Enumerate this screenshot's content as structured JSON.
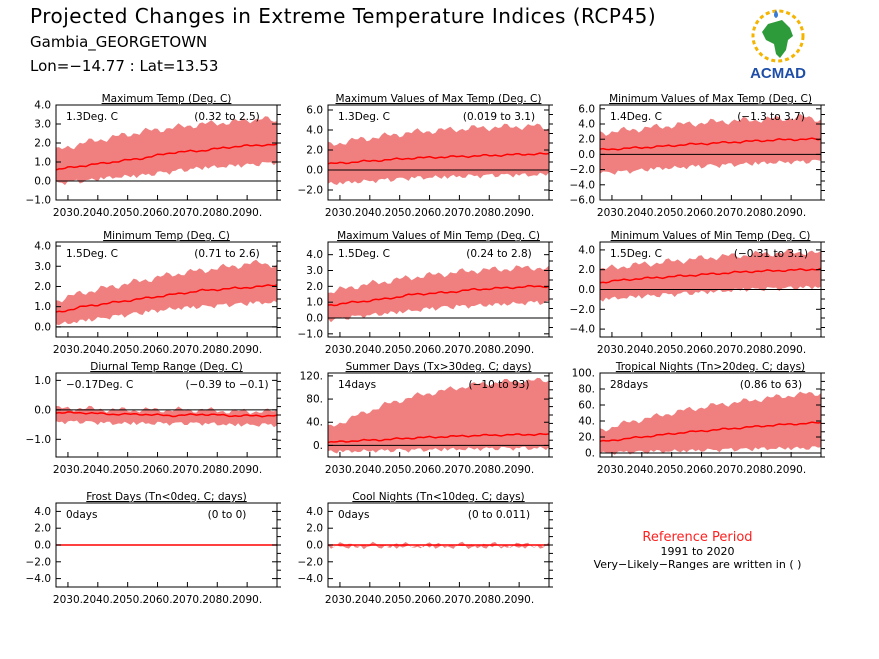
{
  "header": {
    "title": "Projected Changes in Extreme Temperature Indices (RCP45)",
    "location": "Gambia_GEORGETOWN",
    "coords": "Lon=−14.77 : Lat=13.53",
    "logo_text": "ACMAD"
  },
  "reference": {
    "title": "Reference Period",
    "period": "1991 to 2020",
    "note": "Very−Likely−Ranges are written in ( )"
  },
  "colors": {
    "band": "#f08080",
    "line": "#ff0000",
    "zero": "#000000",
    "ref_text": "#ff2020"
  },
  "chart_data": [
    {
      "type": "line",
      "title": "Maximum Temp (Deg. C)",
      "value_text": "1.3Deg. C",
      "range_text": "(0.32 to 2.5)",
      "ylim": [
        -1.0,
        4.0
      ],
      "yticks": [
        "4.0",
        "3.0",
        "2.0",
        "1.0",
        "0.0",
        "−1.0"
      ],
      "ytick_values": [
        4,
        3,
        2,
        1,
        0,
        -1
      ],
      "x_start": 2026,
      "x_end": 2100,
      "xticks": [
        "2030.",
        "2040.",
        "2050.",
        "2060.",
        "2070.",
        "2080.",
        "2090."
      ],
      "mean": {
        "x": [
          2026,
          2035,
          2045,
          2055,
          2065,
          2075,
          2085,
          2095,
          2100
        ],
        "y": [
          0.6,
          0.8,
          1.0,
          1.2,
          1.5,
          1.6,
          1.8,
          1.9,
          1.9
        ]
      },
      "band": {
        "low": [
          0.0,
          0.1,
          0.3,
          0.4,
          0.6,
          0.8,
          0.9,
          1.0,
          1.1
        ],
        "high": [
          1.6,
          2.0,
          2.3,
          2.6,
          2.8,
          3.0,
          3.1,
          3.3,
          3.1
        ]
      }
    },
    {
      "type": "line",
      "title": "Maximum Values of Max Temp (Deg. C)",
      "value_text": "1.3Deg. C",
      "range_text": "(0.019 to 3.1)",
      "ylim": [
        -3.0,
        6.5
      ],
      "yticks": [
        "6.0",
        "4.0",
        "2.0",
        "0.0",
        "−2.0"
      ],
      "ytick_values": [
        6,
        4,
        2,
        0,
        -2
      ],
      "x_start": 2026,
      "x_end": 2100,
      "xticks": [
        "2030.",
        "2040.",
        "2050.",
        "2060.",
        "2070.",
        "2080.",
        "2090."
      ],
      "mean": {
        "x": [
          2026,
          2035,
          2045,
          2055,
          2065,
          2075,
          2085,
          2095,
          2100
        ],
        "y": [
          0.6,
          0.8,
          1.0,
          1.2,
          1.3,
          1.4,
          1.5,
          1.6,
          1.6
        ]
      },
      "band": {
        "low": [
          -1.2,
          -1.0,
          -0.8,
          -0.6,
          -0.5,
          -0.4,
          -0.3,
          -0.3,
          -0.2
        ],
        "high": [
          2.5,
          3.0,
          3.4,
          3.8,
          4.0,
          4.2,
          4.3,
          4.4,
          4.2
        ]
      }
    },
    {
      "type": "line",
      "title": "Minimum Values of Max Temp (Deg. C)",
      "value_text": "1.4Deg. C",
      "range_text": "(−1.3 to 3.7)",
      "ylim": [
        -6.0,
        6.5
      ],
      "yticks": [
        "6.0",
        "4.0",
        "2.0",
        "0.0",
        "−2.0",
        "−4.0",
        "−6.0"
      ],
      "ytick_values": [
        6,
        4,
        2,
        0,
        -2,
        -4,
        -6
      ],
      "x_start": 2026,
      "x_end": 2100,
      "xticks": [
        "2030.",
        "2040.",
        "2050.",
        "2060.",
        "2070.",
        "2080.",
        "2090."
      ],
      "mean": {
        "x": [
          2026,
          2035,
          2045,
          2055,
          2065,
          2075,
          2085,
          2095,
          2100
        ],
        "y": [
          0.6,
          0.8,
          1.0,
          1.3,
          1.5,
          1.7,
          1.9,
          2.0,
          2.0
        ]
      },
      "band": {
        "low": [
          -2.2,
          -2.0,
          -1.6,
          -1.4,
          -1.2,
          -1.0,
          -0.8,
          -0.7,
          -0.6
        ],
        "high": [
          2.8,
          3.2,
          3.6,
          4.0,
          4.3,
          4.5,
          4.7,
          4.9,
          4.6
        ]
      }
    },
    {
      "type": "line",
      "title": "Minimum Temp (Deg. C)",
      "value_text": "1.5Deg. C",
      "range_text": "(0.71 to 2.6)",
      "ylim": [
        -0.5,
        4.2
      ],
      "yticks": [
        "4.0",
        "3.0",
        "2.0",
        "1.0",
        "0.0"
      ],
      "ytick_values": [
        4,
        3,
        2,
        1,
        0
      ],
      "x_start": 2026,
      "x_end": 2100,
      "xticks": [
        "2030.",
        "2040.",
        "2050.",
        "2060.",
        "2070.",
        "2080.",
        "2090."
      ],
      "mean": {
        "x": [
          2026,
          2035,
          2045,
          2055,
          2065,
          2075,
          2085,
          2095,
          2100
        ],
        "y": [
          0.7,
          1.0,
          1.2,
          1.4,
          1.6,
          1.8,
          1.9,
          2.0,
          2.1
        ]
      },
      "band": {
        "low": [
          0.2,
          0.4,
          0.6,
          0.8,
          1.0,
          1.1,
          1.2,
          1.3,
          1.3
        ],
        "high": [
          1.3,
          1.7,
          2.0,
          2.3,
          2.6,
          2.8,
          3.0,
          3.2,
          3.0
        ]
      }
    },
    {
      "type": "line",
      "title": "Maximum Values of Min Temp (Deg. C)",
      "value_text": "1.5Deg. C",
      "range_text": "(0.24 to 2.8)",
      "ylim": [
        -1.2,
        4.8
      ],
      "yticks": [
        "4.0",
        "3.0",
        "2.0",
        "1.0",
        "0.0",
        "−1.0"
      ],
      "ytick_values": [
        4,
        3,
        2,
        1,
        0,
        -1
      ],
      "x_start": 2026,
      "x_end": 2100,
      "xticks": [
        "2030.",
        "2040.",
        "2050.",
        "2060.",
        "2070.",
        "2080.",
        "2090."
      ],
      "mean": {
        "x": [
          2026,
          2035,
          2045,
          2055,
          2065,
          2075,
          2085,
          2095,
          2100
        ],
        "y": [
          0.8,
          1.0,
          1.2,
          1.5,
          1.6,
          1.8,
          1.9,
          2.0,
          2.0
        ]
      },
      "band": {
        "low": [
          0.0,
          0.2,
          0.4,
          0.6,
          0.8,
          0.9,
          1.0,
          1.1,
          1.1
        ],
        "high": [
          1.6,
          2.0,
          2.3,
          2.6,
          2.8,
          3.0,
          3.1,
          3.2,
          3.1
        ]
      }
    },
    {
      "type": "line",
      "title": "Minimum Values of Min Temp (Deg. C)",
      "value_text": "1.5Deg. C",
      "range_text": "(−0.31 to 3.1)",
      "ylim": [
        -4.8,
        4.8
      ],
      "yticks": [
        "4.0",
        "2.0",
        "0.0",
        "−2.0",
        "−4.0"
      ],
      "ytick_values": [
        4,
        2,
        0,
        -2,
        -4
      ],
      "x_start": 2026,
      "x_end": 2100,
      "xticks": [
        "2030.",
        "2040.",
        "2050.",
        "2060.",
        "2070.",
        "2080.",
        "2090."
      ],
      "mean": {
        "x": [
          2026,
          2035,
          2045,
          2055,
          2065,
          2075,
          2085,
          2095,
          2100
        ],
        "y": [
          0.7,
          1.0,
          1.2,
          1.4,
          1.6,
          1.8,
          1.9,
          2.0,
          2.1
        ]
      },
      "band": {
        "low": [
          -0.8,
          -0.6,
          -0.4,
          -0.2,
          0.0,
          0.2,
          0.3,
          0.4,
          0.5
        ],
        "high": [
          2.0,
          2.4,
          2.7,
          3.0,
          3.3,
          3.5,
          3.7,
          3.8,
          3.6
        ]
      }
    },
    {
      "type": "line",
      "title": "Diurnal Temp Range (Deg. C)",
      "value_text": "−0.17Deg. C",
      "range_text": "(−0.39 to −0.1)",
      "ylim": [
        -1.6,
        1.25
      ],
      "yticks": [
        "1.0",
        "0.0",
        "−1.0"
      ],
      "ytick_values": [
        1,
        0,
        -1
      ],
      "x_start": 2026,
      "x_end": 2100,
      "xticks": [
        "2030.",
        "2040.",
        "2050.",
        "2060.",
        "2070.",
        "2080.",
        "2090."
      ],
      "mean": {
        "x": [
          2026,
          2035,
          2045,
          2055,
          2065,
          2075,
          2085,
          2095,
          2100
        ],
        "y": [
          -0.1,
          -0.1,
          -0.15,
          -0.15,
          -0.2,
          -0.15,
          -0.2,
          -0.2,
          -0.2
        ]
      },
      "band": {
        "low": [
          -0.35,
          -0.35,
          -0.4,
          -0.4,
          -0.4,
          -0.4,
          -0.45,
          -0.45,
          -0.45
        ],
        "high": [
          0.05,
          0.05,
          0.0,
          0.0,
          0.0,
          0.0,
          -0.05,
          -0.05,
          -0.05
        ]
      }
    },
    {
      "type": "line",
      "title": "Summer Days (Tx>30deg. C; days)",
      "value_text": "14days",
      "range_text": "(−10 to 93)",
      "ylim": [
        -20,
        125
      ],
      "yticks": [
        "120.",
        "80.",
        "40.",
        "0."
      ],
      "ytick_values": [
        120,
        80,
        40,
        0
      ],
      "x_start": 2026,
      "x_end": 2100,
      "xticks": [
        "2030.",
        "2040.",
        "2050.",
        "2060.",
        "2070.",
        "2080.",
        "2090."
      ],
      "mean": {
        "x": [
          2026,
          2035,
          2045,
          2055,
          2065,
          2075,
          2085,
          2095,
          2100
        ],
        "y": [
          5,
          8,
          10,
          13,
          15,
          17,
          18,
          19,
          19
        ]
      },
      "band": {
        "low": [
          -8,
          -7,
          -6,
          -5,
          -4,
          -3,
          -2,
          -2,
          -2
        ],
        "high": [
          30,
          50,
          70,
          85,
          95,
          105,
          110,
          112,
          112
        ]
      }
    },
    {
      "type": "line",
      "title": "Tropical Nights (Tn>20deg. C; days)",
      "value_text": "28days",
      "range_text": "(0.86 to 63)",
      "ylim": [
        -5,
        100
      ],
      "yticks": [
        "100.",
        "80.",
        "60.",
        "40.",
        "20.",
        "0."
      ],
      "ytick_values": [
        100,
        80,
        60,
        40,
        20,
        0
      ],
      "x_start": 2026,
      "x_end": 2100,
      "xticks": [
        "2030.",
        "2040.",
        "2050.",
        "2060.",
        "2070.",
        "2080.",
        "2090."
      ],
      "mean": {
        "x": [
          2026,
          2035,
          2045,
          2055,
          2065,
          2075,
          2085,
          2095,
          2100
        ],
        "y": [
          14,
          18,
          22,
          26,
          29,
          32,
          35,
          37,
          38
        ]
      },
      "band": {
        "low": [
          2,
          3,
          4,
          5,
          6,
          7,
          8,
          8,
          9
        ],
        "high": [
          28,
          38,
          46,
          54,
          60,
          65,
          70,
          74,
          75
        ]
      }
    },
    {
      "type": "line",
      "title": "Frost Days (Tn<0deg. C; days)",
      "value_text": "0days",
      "range_text": "(0 to 0)",
      "ylim": [
        -5,
        5
      ],
      "yticks": [
        "4.0",
        "2.0",
        "0.0",
        "−2.0",
        "−4.0"
      ],
      "ytick_values": [
        4,
        2,
        0,
        -2,
        -4
      ],
      "x_start": 2026,
      "x_end": 2100,
      "xticks": [
        "2030.",
        "2040.",
        "2050.",
        "2060.",
        "2070.",
        "2080.",
        "2090."
      ],
      "mean": {
        "x": [
          2026,
          2100
        ],
        "y": [
          0,
          0
        ]
      },
      "band": {
        "low": [
          0,
          0
        ],
        "high": [
          0,
          0
        ]
      }
    },
    {
      "type": "line",
      "title": "Cool Nights (Tn<10deg. C; days)",
      "value_text": "0days",
      "range_text": "(0 to 0.011)",
      "ylim": [
        -5,
        5
      ],
      "yticks": [
        "4.0",
        "2.0",
        "0.0",
        "−2.0",
        "−4.0"
      ],
      "ytick_values": [
        4,
        2,
        0,
        -2,
        -4
      ],
      "x_start": 2026,
      "x_end": 2100,
      "xticks": [
        "2030.",
        "2040.",
        "2050.",
        "2060.",
        "2070.",
        "2080.",
        "2090."
      ],
      "mean": {
        "x": [
          2026,
          2100
        ],
        "y": [
          0,
          0
        ]
      },
      "band": {
        "low": [
          0,
          0
        ],
        "high": [
          0,
          0.01
        ]
      }
    }
  ]
}
